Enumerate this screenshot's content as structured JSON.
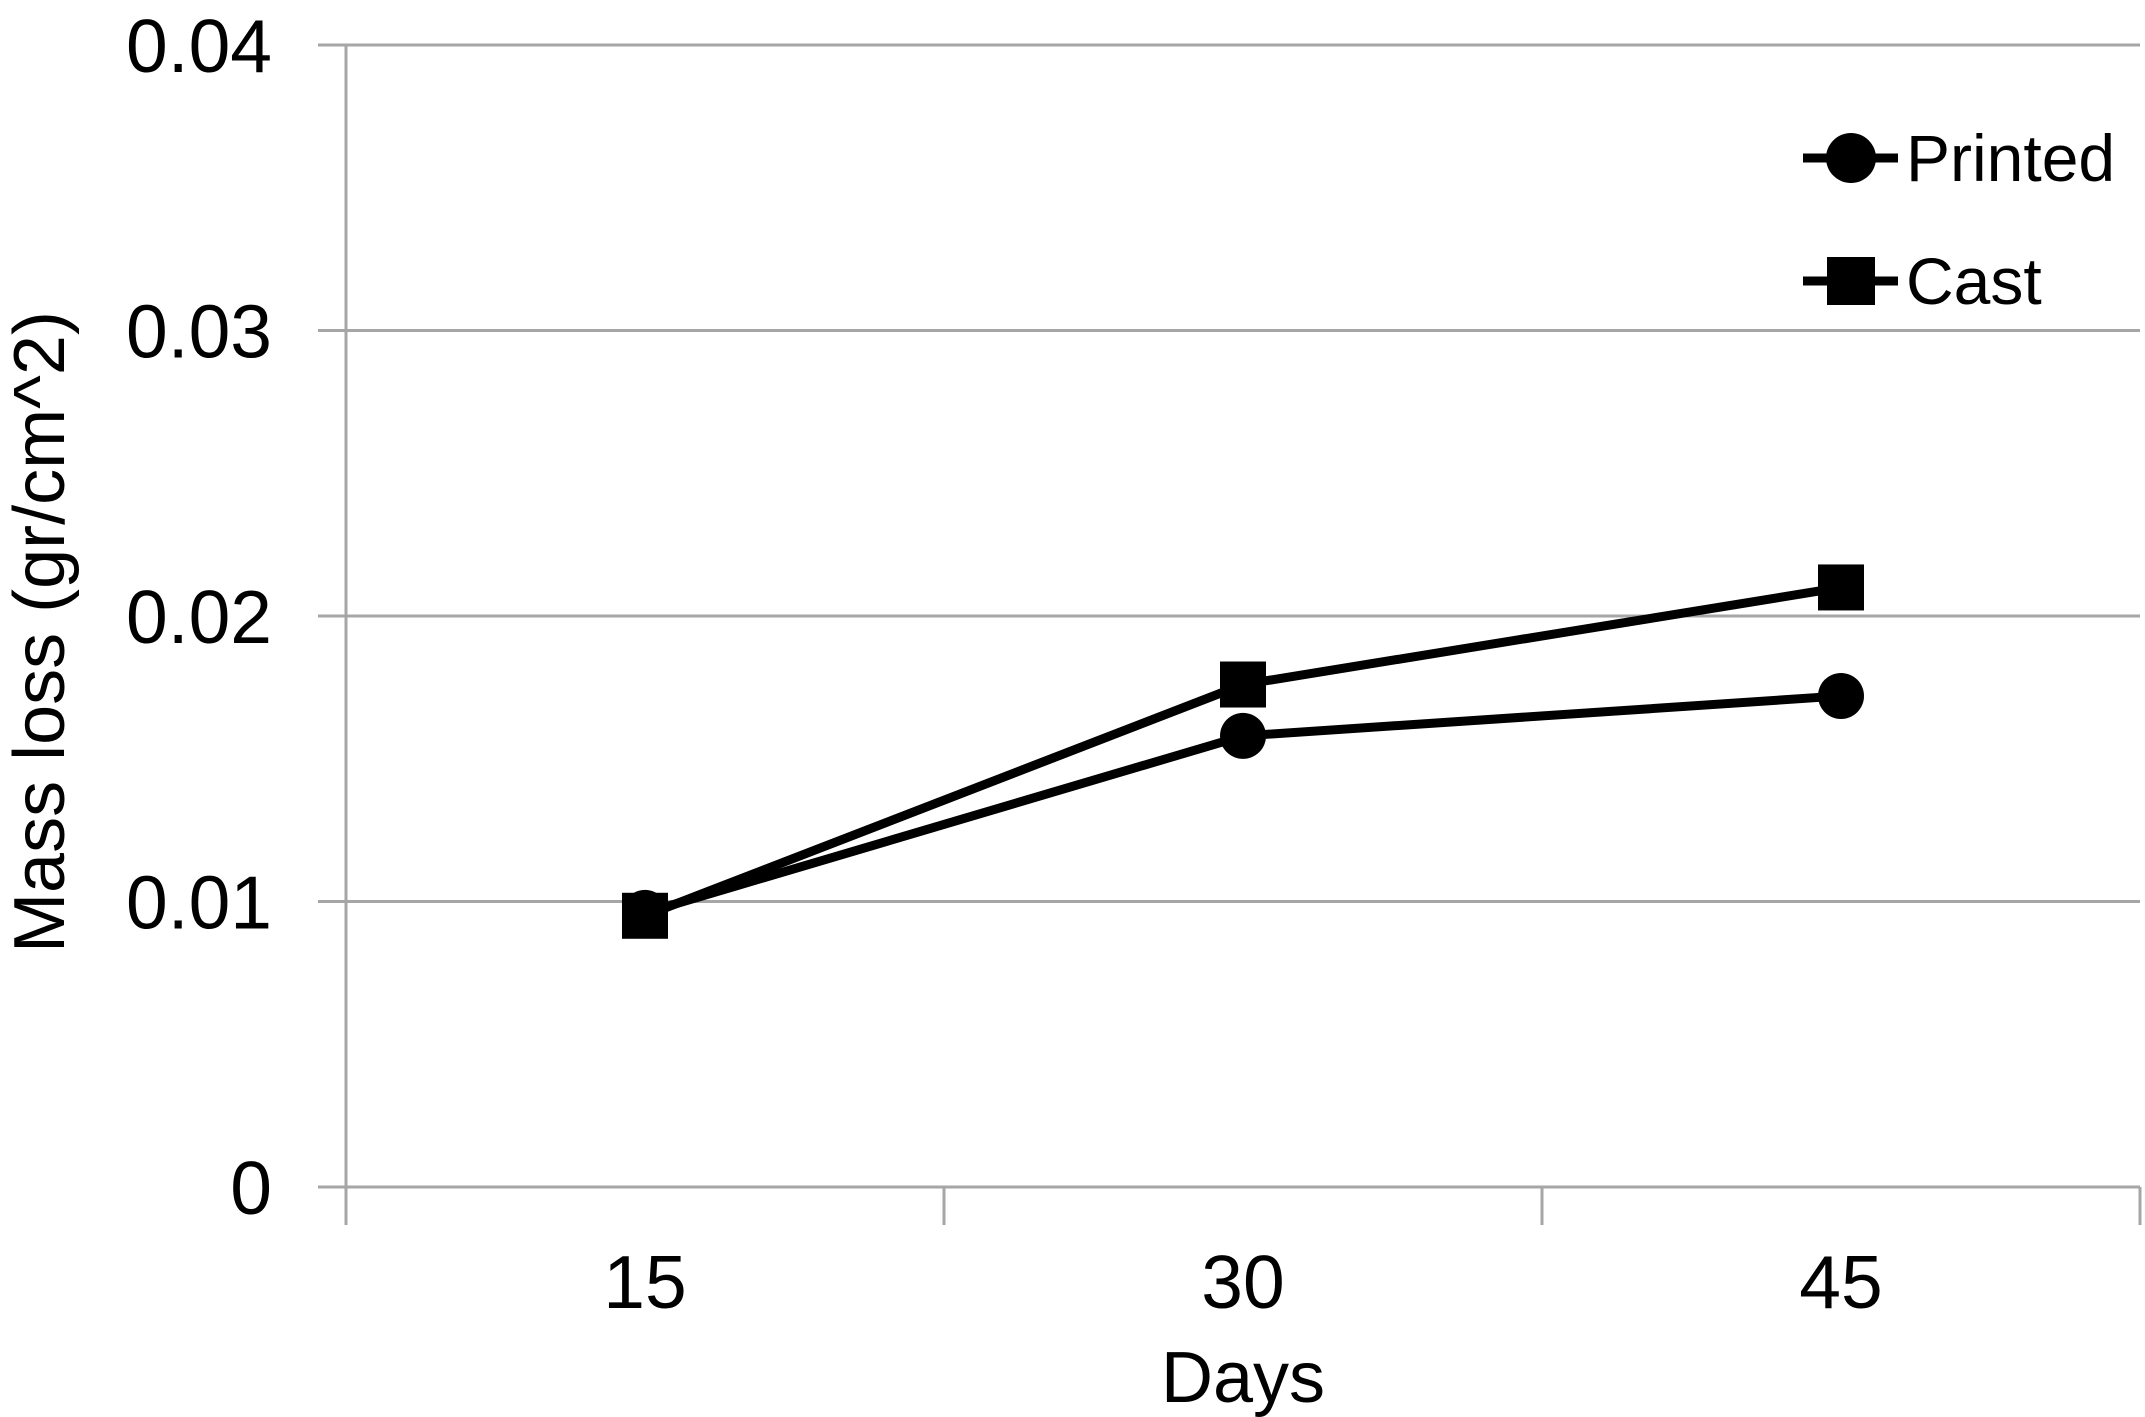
{
  "chart_data": {
    "type": "line",
    "categories": [
      "15",
      "30",
      "45"
    ],
    "series": [
      {
        "name": "Printed",
        "marker": "circle",
        "values": [
          0.0096,
          0.0158,
          0.0172
        ]
      },
      {
        "name": "Cast",
        "marker": "square",
        "values": [
          0.0095,
          0.0176,
          0.021
        ]
      }
    ],
    "xlabel": "Days",
    "ylabel": "Mass loss (gr/cm^2)",
    "ylim": [
      0,
      0.04
    ],
    "y_ticks": [
      0,
      0.01,
      0.02,
      0.03,
      0.04
    ],
    "y_tick_labels": [
      "0",
      "0.01",
      "0.02",
      "0.03",
      "0.04"
    ],
    "grid": true,
    "legend_position": "top-right",
    "line_color": "#000000",
    "text_color": "#000000",
    "grid_color": "#a6a6a6",
    "background_color": "#ffffff"
  }
}
